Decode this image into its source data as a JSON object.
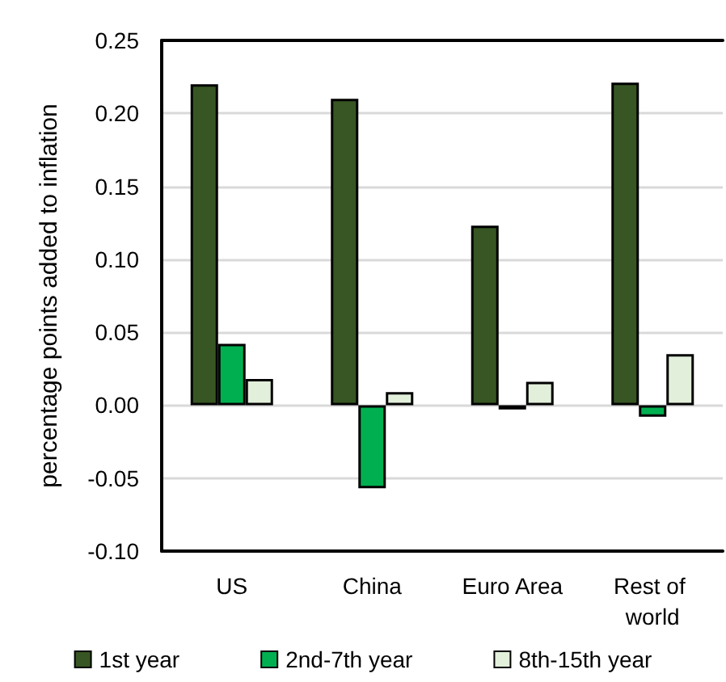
{
  "chart_data": {
    "type": "bar",
    "ylabel": "percentage points added to inflation",
    "categories": [
      "US",
      "China",
      "Euro Area",
      "Rest of world"
    ],
    "series": [
      {
        "name": "1st year",
        "color": "#375623",
        "values": [
          0.22,
          0.21,
          0.123,
          0.221
        ]
      },
      {
        "name": "2nd-7th year",
        "color": "#00b050",
        "values": [
          0.042,
          -0.057,
          -0.003,
          -0.008
        ]
      },
      {
        "name": "8th-15th year",
        "color": "#e2efda",
        "values": [
          0.018,
          0.009,
          0.016,
          0.035
        ]
      }
    ],
    "ylim": [
      -0.1,
      0.25
    ],
    "yticks": [
      {
        "value": -0.1,
        "label": "-0.10"
      },
      -0.05,
      {
        "value": 0,
        "label": "0.00"
      },
      0.05,
      {
        "value": 0.1,
        "label": "0.10"
      },
      0.15,
      {
        "value": 0.2,
        "label": "0.20"
      },
      0.25
    ],
    "grid": "y",
    "legend": "bottom"
  }
}
